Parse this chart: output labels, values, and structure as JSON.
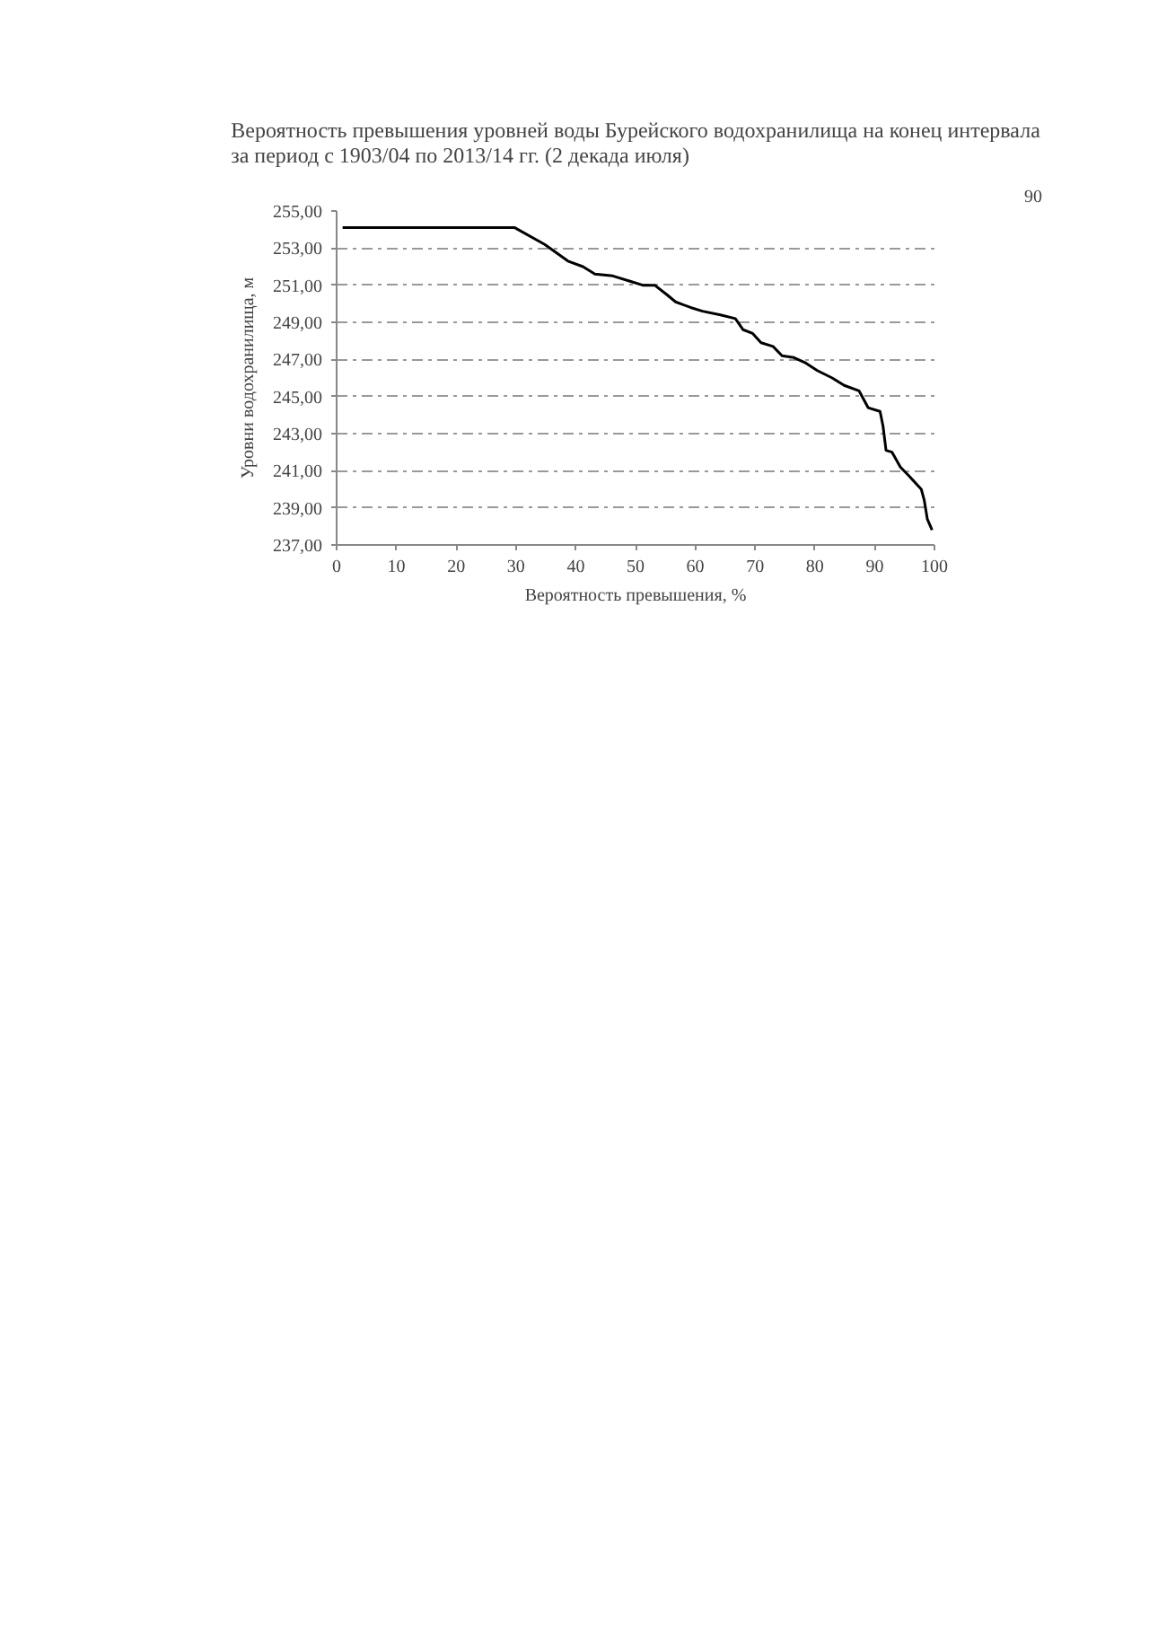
{
  "chart_data": {
    "type": "line",
    "title": "Вероятность превышения уровней воды Бурейского водохранилища на конец интервала\nза период с 1903/04 по 2013/14 гг. (2 декада июля)",
    "xlabel": "Вероятность превышения, %",
    "ylabel": "Уровни водохранилища, м",
    "annotations": [
      "90"
    ],
    "x": [
      1,
      29.8,
      34.8,
      38.7,
      41.2,
      43.2,
      46.2,
      49.2,
      51.2,
      53.2,
      55.2,
      56.7,
      59.2,
      61.2,
      64.2,
      66.7,
      68.0,
      69.6,
      71.0,
      73.0,
      74.5,
      76.5,
      78.5,
      80.4,
      82.9,
      84.9,
      87.4,
      88.9,
      90.9,
      91.4,
      91.9,
      92.9,
      94.3,
      95.8,
      97.8,
      98.3,
      98.8,
      99.6
    ],
    "series": [
      {
        "color": "#000000",
        "values": [
          254.1,
          254.1,
          253.2,
          252.3,
          252.0,
          251.6,
          251.5,
          251.2,
          251.0,
          251.0,
          250.5,
          250.1,
          249.8,
          249.6,
          249.4,
          249.2,
          248.6,
          248.4,
          247.9,
          247.7,
          247.2,
          247.1,
          246.8,
          246.4,
          246.0,
          245.6,
          245.3,
          244.4,
          244.2,
          243.4,
          242.1,
          242.0,
          241.2,
          240.7,
          240.0,
          239.4,
          238.4,
          237.8
        ]
      }
    ],
    "xlim": [
      0,
      100
    ],
    "xticks": [
      0,
      10,
      20,
      30,
      40,
      50,
      60,
      70,
      80,
      90,
      100
    ],
    "ylim": [
      237,
      255
    ],
    "yticks": [
      {
        "value": 237,
        "label": "237,00"
      },
      {
        "value": 239,
        "label": "239,00"
      },
      {
        "value": 241,
        "label": "241,00"
      },
      {
        "value": 243,
        "label": "243,00"
      },
      {
        "value": 245,
        "label": "245,00"
      },
      {
        "value": 247,
        "label": "247,00"
      },
      {
        "value": 249,
        "label": "249,00"
      },
      {
        "value": 251,
        "label": "251,00"
      },
      {
        "value": 253,
        "label": "253,00"
      },
      {
        "value": 255,
        "label": "255,00"
      }
    ],
    "grid": "y",
    "marker": "none",
    "line_style": "solid"
  }
}
